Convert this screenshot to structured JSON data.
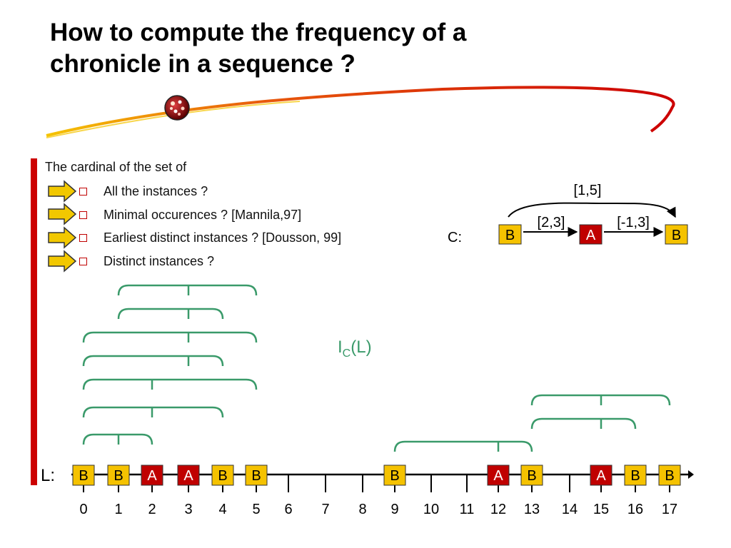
{
  "title": {
    "line1": "How to compute the frequency of a",
    "line2": "chronicle in a sequence ?"
  },
  "bullets": {
    "lead": "The cardinal of the set of",
    "items": [
      "All the instances ?",
      "Minimal occurences ? [Mannila,97]",
      "Earliest distinct instances ? [Dousson, 99]",
      "Distinct instances ?"
    ]
  },
  "chronicle": {
    "label": "C:",
    "events": [
      "B",
      "A",
      "B"
    ],
    "constraints": {
      "b_to_a": "[2,3]",
      "a_to_b": "[-1,3]",
      "b_to_b": "[1,5]"
    }
  },
  "instances_label": {
    "base": "I",
    "sub": "C",
    "arg": "(L)"
  },
  "sequence": {
    "label": "L:",
    "ticks": [
      "0",
      "1",
      "2",
      "3",
      "4",
      "5",
      "6",
      "7",
      "8",
      "9",
      "10",
      "11",
      "12",
      "13",
      "14",
      "15",
      "16",
      "17"
    ],
    "events": [
      {
        "t": 0,
        "type": "B"
      },
      {
        "t": 1,
        "type": "B"
      },
      {
        "t": 2,
        "type": "A"
      },
      {
        "t": 3,
        "type": "A"
      },
      {
        "t": 4,
        "type": "B"
      },
      {
        "t": 5,
        "type": "B"
      },
      {
        "t": 9,
        "type": "B"
      },
      {
        "t": 12,
        "type": "A"
      },
      {
        "t": 13,
        "type": "B"
      },
      {
        "t": 15,
        "type": "A"
      },
      {
        "t": 16,
        "type": "B"
      },
      {
        "t": 17,
        "type": "B"
      }
    ]
  },
  "instances": [
    [
      1,
      3,
      5
    ],
    [
      1,
      3,
      4
    ],
    [
      0,
      3,
      5
    ],
    [
      0,
      3,
      4
    ],
    [
      0,
      2,
      5
    ],
    [
      0,
      2,
      4
    ],
    [
      0,
      1,
      2
    ],
    [
      9,
      12,
      13
    ],
    [
      13,
      15,
      17
    ],
    [
      13,
      15,
      16
    ]
  ],
  "colors": {
    "event_B": "#f5c200",
    "event_A": "#c00000",
    "bracket": "#3a9a6a",
    "title_arc": "#d4161b",
    "left_bar": "#cc0000",
    "arrow_fill": "#f2c800"
  },
  "icons": [
    "bullet-arrow-icon",
    "checkbox-bullet-icon",
    "logo-icon"
  ]
}
